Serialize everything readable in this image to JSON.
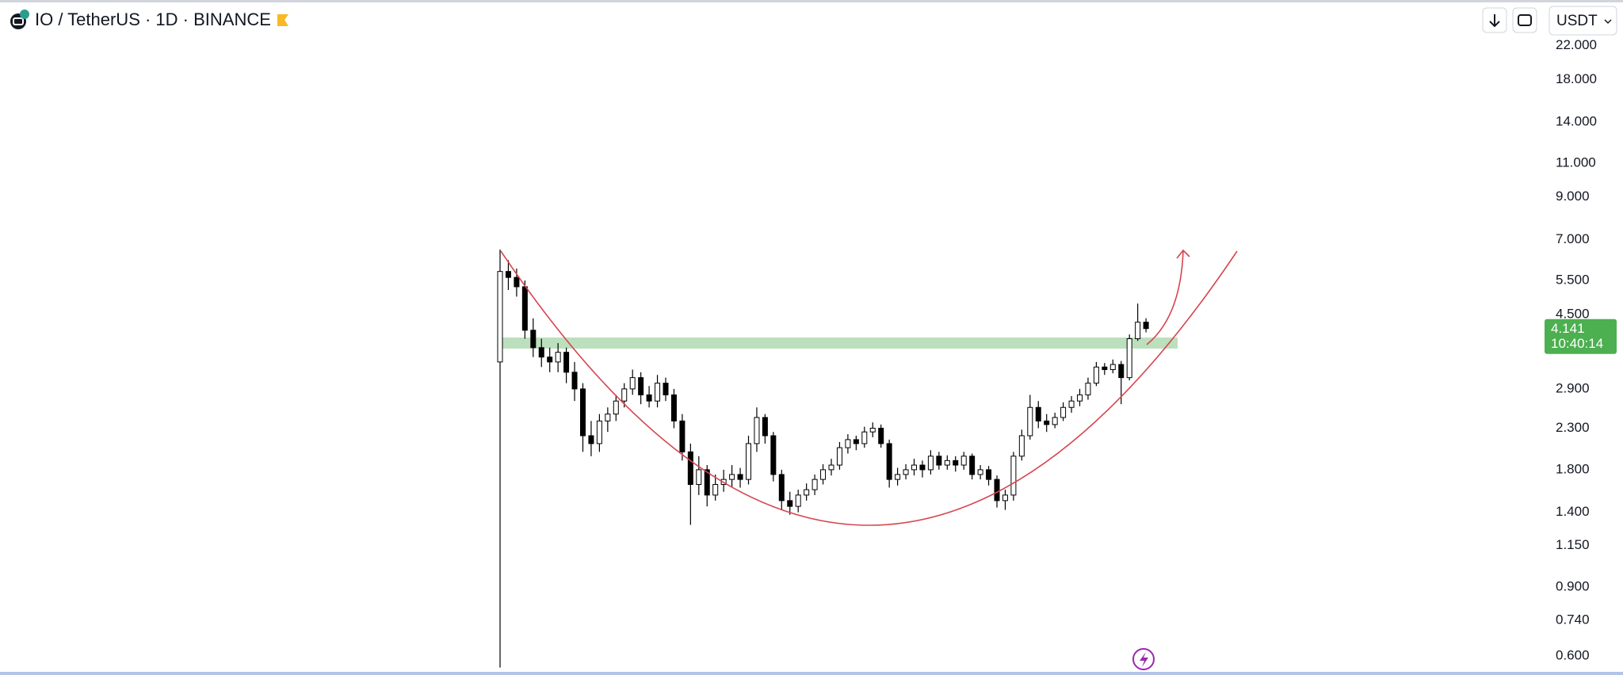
{
  "chart_data": {
    "type": "candlestick",
    "title": "IO / TetherUS · 1D · BINANCE",
    "currency": "USDT",
    "log_scale": true,
    "ylim": [
      0.541,
      28.79
    ],
    "yticks": [
      {
        "value": 22,
        "label": "22.000"
      },
      {
        "value": 18,
        "label": "18.000"
      },
      {
        "value": 14,
        "label": "14.000"
      },
      {
        "value": 11,
        "label": "11.000"
      },
      {
        "value": 9,
        "label": "9.000"
      },
      {
        "value": 7,
        "label": "7.000"
      },
      {
        "value": 5.5,
        "label": "5.500"
      },
      {
        "value": 4.5,
        "label": "4.500"
      },
      {
        "value": 2.9,
        "label": "2.900"
      },
      {
        "value": 2.3,
        "label": "2.300"
      },
      {
        "value": 1.8,
        "label": "1.800"
      },
      {
        "value": 1.4,
        "label": "1.400"
      },
      {
        "value": 1.15,
        "label": "1.150"
      },
      {
        "value": 0.9,
        "label": "0.900"
      },
      {
        "value": 0.74,
        "label": "0.740"
      },
      {
        "value": 0.6,
        "label": "0.600"
      }
    ],
    "up_color": "#ffffff",
    "down_color": "#000000",
    "wick_color": "#000000",
    "open": [
      3.4,
      5.8,
      5.6,
      5.3,
      4.1,
      3.7,
      3.5,
      3.4,
      3.6,
      3.2,
      2.9,
      2.2,
      2.1,
      2.4,
      2.5,
      2.7,
      2.9,
      3.1,
      2.8,
      2.7,
      3.0,
      2.8,
      2.4,
      2.0,
      1.65,
      1.8,
      1.55,
      1.65,
      1.7,
      1.75,
      1.7,
      2.1,
      2.45,
      2.2,
      1.75,
      1.5,
      1.45,
      1.55,
      1.6,
      1.7,
      1.8,
      1.85,
      2.05,
      2.15,
      2.1,
      2.25,
      2.3,
      2.1,
      1.7,
      1.75,
      1.8,
      1.85,
      1.8,
      1.95,
      1.85,
      1.9,
      1.85,
      1.95,
      1.75,
      1.8,
      1.7,
      1.5,
      1.55,
      1.95,
      2.2,
      2.6,
      2.4,
      2.35,
      2.45,
      2.6,
      2.7,
      2.8,
      3.0,
      3.3,
      3.25,
      3.35,
      3.1,
      3.9,
      4.3
    ],
    "high": [
      6.6,
      6.2,
      5.9,
      5.5,
      4.4,
      3.9,
      3.7,
      3.8,
      3.7,
      3.4,
      3.0,
      2.4,
      2.5,
      2.6,
      2.8,
      3.0,
      3.25,
      3.2,
      2.95,
      3.15,
      3.1,
      2.9,
      2.5,
      2.1,
      1.95,
      1.85,
      1.75,
      1.8,
      1.85,
      1.82,
      2.2,
      2.6,
      2.5,
      2.25,
      1.8,
      1.58,
      1.6,
      1.66,
      1.75,
      1.86,
      1.92,
      2.12,
      2.22,
      2.2,
      2.32,
      2.38,
      2.35,
      2.15,
      1.82,
      1.86,
      1.92,
      1.9,
      2.02,
      2.0,
      1.96,
      1.95,
      2.0,
      1.98,
      1.85,
      1.84,
      1.74,
      1.6,
      2.0,
      2.28,
      2.8,
      2.7,
      2.5,
      2.52,
      2.68,
      2.78,
      2.9,
      3.1,
      3.4,
      3.38,
      3.45,
      3.42,
      4.0,
      4.8,
      4.4
    ],
    "low": [
      0.56,
      5.2,
      5.0,
      3.9,
      3.5,
      3.3,
      3.2,
      3.2,
      3.0,
      2.7,
      2.0,
      1.95,
      2.0,
      2.25,
      2.4,
      2.6,
      2.8,
      2.65,
      2.6,
      2.6,
      2.7,
      2.3,
      1.9,
      1.3,
      1.55,
      1.45,
      1.5,
      1.58,
      1.62,
      1.62,
      1.65,
      2.0,
      2.1,
      1.68,
      1.42,
      1.38,
      1.4,
      1.5,
      1.55,
      1.65,
      1.74,
      1.8,
      1.98,
      2.02,
      2.05,
      2.18,
      2.05,
      1.62,
      1.64,
      1.7,
      1.74,
      1.72,
      1.75,
      1.8,
      1.8,
      1.78,
      1.8,
      1.7,
      1.7,
      1.64,
      1.44,
      1.42,
      1.5,
      1.9,
      2.15,
      2.3,
      2.25,
      2.3,
      2.4,
      2.52,
      2.62,
      2.72,
      2.95,
      3.15,
      3.18,
      2.65,
      3.05,
      3.85,
      4.05
    ],
    "close": [
      5.8,
      5.6,
      5.3,
      4.1,
      3.7,
      3.5,
      3.4,
      3.6,
      3.2,
      2.9,
      2.2,
      2.1,
      2.4,
      2.5,
      2.7,
      2.9,
      3.1,
      2.8,
      2.7,
      3.0,
      2.8,
      2.4,
      2.0,
      1.65,
      1.8,
      1.55,
      1.65,
      1.7,
      1.75,
      1.7,
      2.1,
      2.45,
      2.2,
      1.75,
      1.5,
      1.45,
      1.55,
      1.6,
      1.7,
      1.8,
      1.85,
      2.05,
      2.15,
      2.1,
      2.25,
      2.3,
      2.1,
      1.7,
      1.75,
      1.8,
      1.85,
      1.8,
      1.95,
      1.85,
      1.9,
      1.85,
      1.95,
      1.75,
      1.8,
      1.7,
      1.5,
      1.55,
      1.95,
      2.2,
      2.6,
      2.4,
      2.35,
      2.45,
      2.6,
      2.7,
      2.8,
      3.0,
      3.3,
      3.25,
      3.35,
      3.1,
      3.9,
      4.3,
      4.141
    ],
    "last_price": 4.141,
    "last_price_color": "#4caf50",
    "countdown": "10:40:14"
  }
}
